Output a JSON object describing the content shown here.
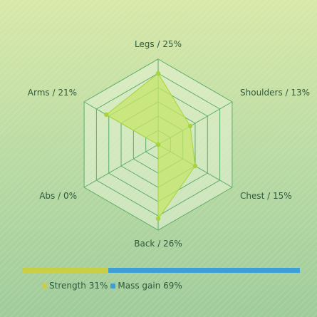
{
  "chart_data": {
    "type": "radar",
    "axes": [
      "Legs / 25%",
      "Shoulders / 13%",
      "Chest / 15%",
      "Back / 26%",
      "Abs / 0%",
      "Arms / 21%"
    ],
    "values": [
      25,
      13,
      15,
      26,
      0,
      21
    ],
    "rmax": 30,
    "grid": true,
    "colors": {
      "fill": "#c6e66a",
      "stroke": "#a8d43a",
      "grid": "#5cae68",
      "grid_fill": "#e6f3d6"
    }
  },
  "split_bar": {
    "segments": [
      {
        "label": "Strength 31%",
        "value": 31,
        "color": "#c9cf45"
      },
      {
        "label": "Mass gain 69%",
        "value": 69,
        "color": "#3e9fd6"
      }
    ]
  }
}
